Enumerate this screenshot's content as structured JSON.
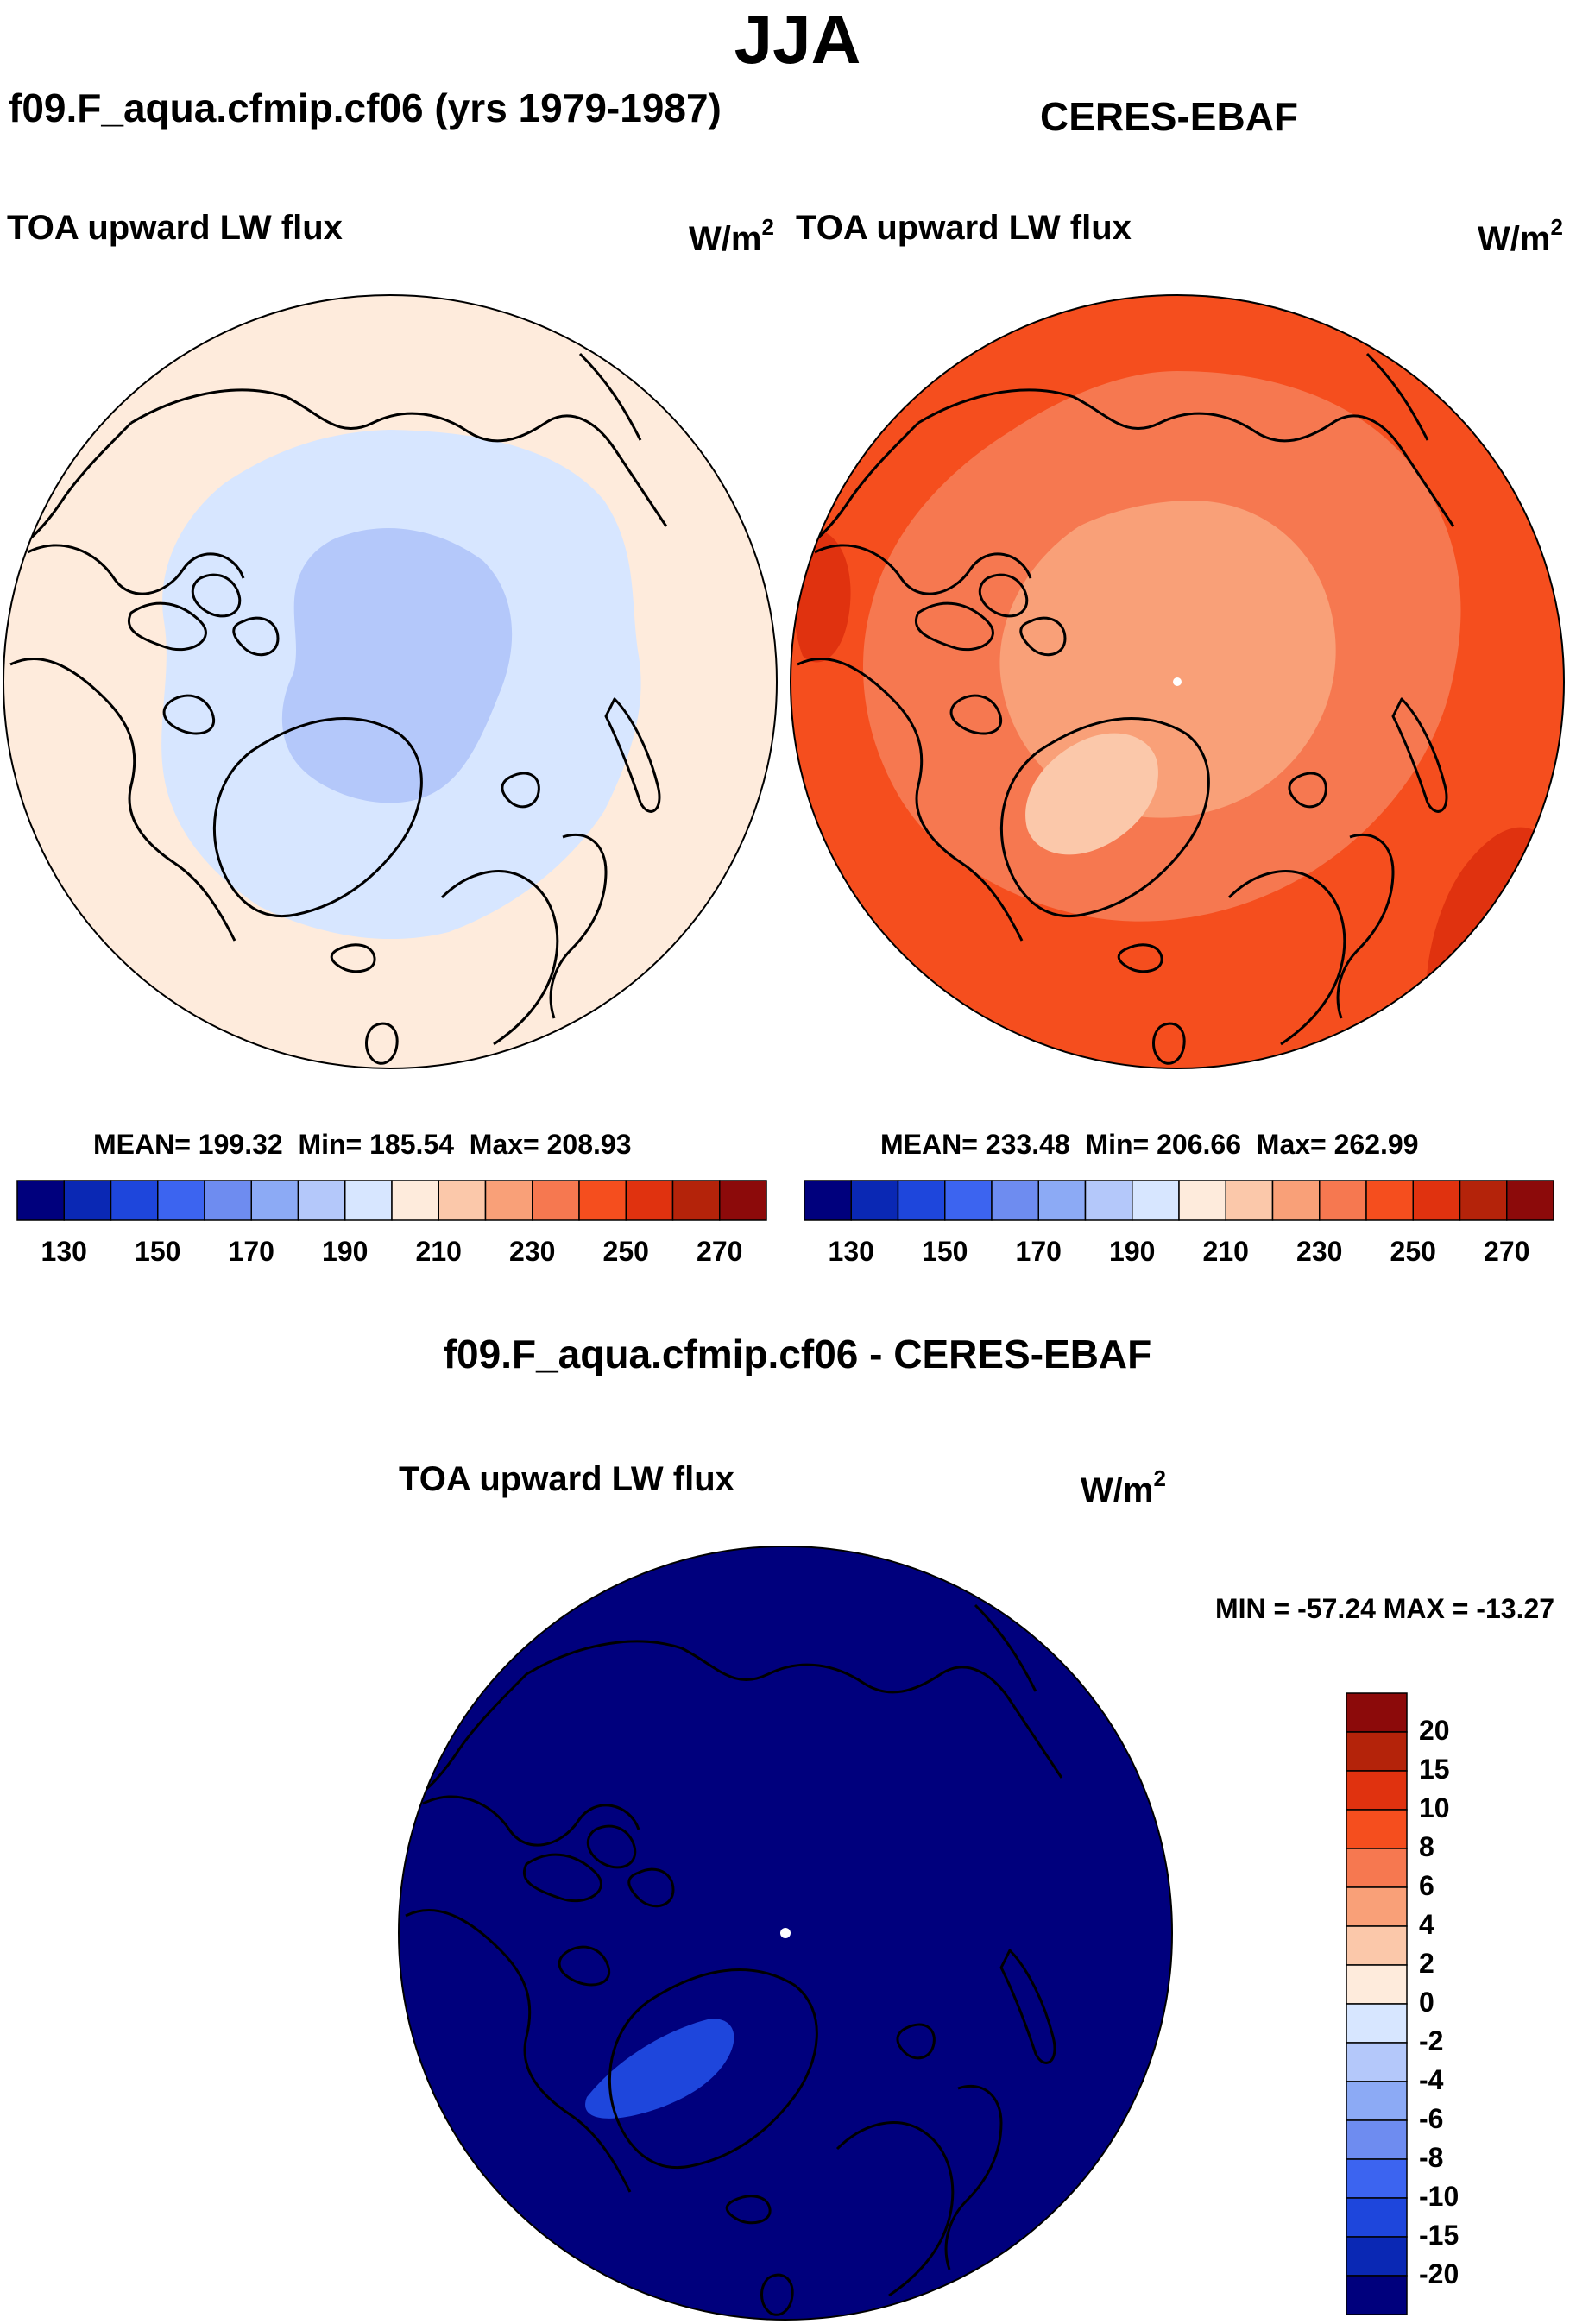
{
  "season": "JJA",
  "panels": [
    {
      "id": "model",
      "title": "f09.F_aqua.cfmip.cf06 (yrs 1979-1987)",
      "variable": "TOA upward LW flux",
      "units_base": "W/m",
      "units_exp": "2",
      "stats": {
        "mean": "MEAN= 199.32",
        "min": "Min= 185.54",
        "max": "Max= 208.93"
      },
      "colorbar_labels": [
        "130",
        "150",
        "170",
        "190",
        "210",
        "230",
        "250",
        "270"
      ]
    },
    {
      "id": "obs",
      "title": "CERES-EBAF",
      "variable": "TOA upward LW flux",
      "units_base": "W/m",
      "units_exp": "2",
      "stats": {
        "mean": "MEAN= 233.48",
        "min": "Min= 206.66",
        "max": "Max= 262.99"
      },
      "colorbar_labels": [
        "130",
        "150",
        "170",
        "190",
        "210",
        "230",
        "250",
        "270"
      ]
    }
  ],
  "difference": {
    "title": "f09.F_aqua.cfmip.cf06 - CERES-EBAF",
    "variable": "TOA upward LW flux",
    "units_base": "W/m",
    "units_exp": "2",
    "minmax": "MIN = -57.24 MAX = -13.27",
    "colorbar_labels": [
      "20",
      "15",
      "10",
      "8",
      "6",
      "4",
      "2",
      "0",
      "-2",
      "-4",
      "-6",
      "-8",
      "-10",
      "-15",
      "-20"
    ]
  },
  "colors": {
    "abs_scale": [
      "#00007d",
      "#0a28b4",
      "#1e46dc",
      "#3c64f0",
      "#6e8cf0",
      "#8caaf5",
      "#b4c8fa",
      "#d7e6ff",
      "#feebdc",
      "#fbc8aa",
      "#f9a078",
      "#f67850",
      "#f54e1e",
      "#e0320f",
      "#b4230a",
      "#8c0a0a"
    ],
    "diff_scale": [
      "#8c0a0a",
      "#b4230a",
      "#e0320f",
      "#f54e1e",
      "#f67850",
      "#f9a078",
      "#fbc8aa",
      "#feebdc",
      "#d7e6ff",
      "#b4c8fa",
      "#8caaf5",
      "#6e8cf0",
      "#3c64f0",
      "#1e46dc",
      "#0a28b4",
      "#00007d"
    ],
    "model_outer": "#feebdc",
    "model_mid": "#d7e6ff",
    "model_inner": "#b4c8fa",
    "obs_base": "#f54e1e",
    "obs_mid": "#f67850",
    "obs_light": "#f9a078",
    "obs_lighter": "#fbc8aa",
    "obs_dark": "#e0320f",
    "diff_base": "#00007d",
    "diff_patch": "#1e46dc"
  }
}
